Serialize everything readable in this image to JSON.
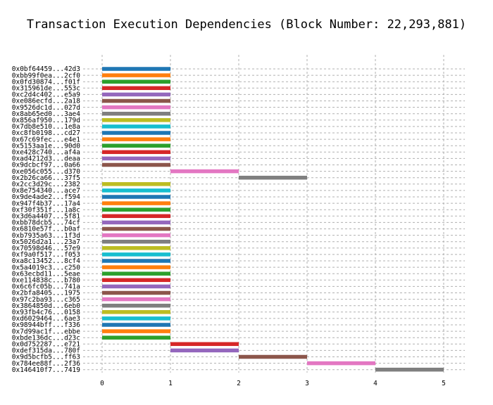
{
  "chart_data": {
    "type": "bar",
    "orientation": "horizontal-gantt",
    "title": "Transaction Execution Dependencies (Block Number: 22,293,881)",
    "xlabel": "",
    "ylabel": "",
    "xlim": [
      0,
      5
    ],
    "xticks": [
      0,
      1,
      2,
      3,
      4,
      5
    ],
    "grid": true,
    "legend": "none",
    "palette": [
      "#1f77b4",
      "#ff7f0e",
      "#2ca02c",
      "#d62728",
      "#9467bd",
      "#8c564b",
      "#e377c2",
      "#7f7f7f",
      "#bcbd22",
      "#17becf"
    ],
    "transactions": [
      {
        "label": "0x0bf64459...42d3",
        "start": 0,
        "end": 1
      },
      {
        "label": "0xbb99f0ea...2cf0",
        "start": 0,
        "end": 1
      },
      {
        "label": "0x0fd30874...f01f",
        "start": 0,
        "end": 1
      },
      {
        "label": "0x315961de...553c",
        "start": 0,
        "end": 1
      },
      {
        "label": "0xc2d4c402...e5a9",
        "start": 0,
        "end": 1
      },
      {
        "label": "0xe086ecfd...2a18",
        "start": 0,
        "end": 1
      },
      {
        "label": "0x9526dc1d...027d",
        "start": 0,
        "end": 1
      },
      {
        "label": "0x8ab65ed0...3ae4",
        "start": 0,
        "end": 1
      },
      {
        "label": "0x856af950...179d",
        "start": 0,
        "end": 1
      },
      {
        "label": "0x7db8e510...1e8a",
        "start": 0,
        "end": 1
      },
      {
        "label": "0xc8fb0198...cd27",
        "start": 0,
        "end": 1
      },
      {
        "label": "0x67c69fec...e4e1",
        "start": 0,
        "end": 1
      },
      {
        "label": "0x5153aa1e...90d0",
        "start": 0,
        "end": 1
      },
      {
        "label": "0xe428c740...af4a",
        "start": 0,
        "end": 1
      },
      {
        "label": "0xad4212d3...deaa",
        "start": 0,
        "end": 1
      },
      {
        "label": "0x9dcbcf97...0a66",
        "start": 0,
        "end": 1
      },
      {
        "label": "0xe056c055...d370",
        "start": 1,
        "end": 2
      },
      {
        "label": "0x2b26ca66...37f5",
        "start": 2,
        "end": 3
      },
      {
        "label": "0x2cc3d29c...2382",
        "start": 0,
        "end": 1
      },
      {
        "label": "0x8e754340...ace7",
        "start": 0,
        "end": 1
      },
      {
        "label": "0x9de4ade2...f594",
        "start": 0,
        "end": 1
      },
      {
        "label": "0x947f4b37...17a4",
        "start": 0,
        "end": 1
      },
      {
        "label": "0xf30f351f...1a8c",
        "start": 0,
        "end": 1
      },
      {
        "label": "0x3d6a4407...5f81",
        "start": 0,
        "end": 1
      },
      {
        "label": "0xbb78dcb5...74cf",
        "start": 0,
        "end": 1
      },
      {
        "label": "0x6810e57f...b0af",
        "start": 0,
        "end": 1
      },
      {
        "label": "0xb7935a63...1f3d",
        "start": 0,
        "end": 1
      },
      {
        "label": "0x5026d2a1...23a7",
        "start": 0,
        "end": 1
      },
      {
        "label": "0x70598d46...57e9",
        "start": 0,
        "end": 1
      },
      {
        "label": "0xf9a0f517...f053",
        "start": 0,
        "end": 1
      },
      {
        "label": "0xa8c13452...8cf4",
        "start": 0,
        "end": 1
      },
      {
        "label": "0x5a4019c3...c250",
        "start": 0,
        "end": 1
      },
      {
        "label": "0x63ecbd11...5eae",
        "start": 0,
        "end": 1
      },
      {
        "label": "0xe114838c...b780",
        "start": 0,
        "end": 1
      },
      {
        "label": "0x6c6fc05b...741a",
        "start": 0,
        "end": 1
      },
      {
        "label": "0x2bfa8405...1975",
        "start": 0,
        "end": 1
      },
      {
        "label": "0x97c2ba93...c365",
        "start": 0,
        "end": 1
      },
      {
        "label": "0x3864850d...6eb0",
        "start": 0,
        "end": 1
      },
      {
        "label": "0x93fb4c76...0158",
        "start": 0,
        "end": 1
      },
      {
        "label": "0xd6029464...6ae3",
        "start": 0,
        "end": 1
      },
      {
        "label": "0x98944bff...f336",
        "start": 0,
        "end": 1
      },
      {
        "label": "0x7d99ac1f...ebbe",
        "start": 0,
        "end": 1
      },
      {
        "label": "0xbde136dc...d23c",
        "start": 0,
        "end": 1
      },
      {
        "label": "0x0d752287...e721",
        "start": 1,
        "end": 2
      },
      {
        "label": "0xdef315da...780f",
        "start": 1,
        "end": 2
      },
      {
        "label": "0x9d5bcfb5...ff63",
        "start": 2,
        "end": 3
      },
      {
        "label": "0x784ee88f...2f36",
        "start": 3,
        "end": 4
      },
      {
        "label": "0x146410f7...7419",
        "start": 4,
        "end": 5
      }
    ]
  }
}
